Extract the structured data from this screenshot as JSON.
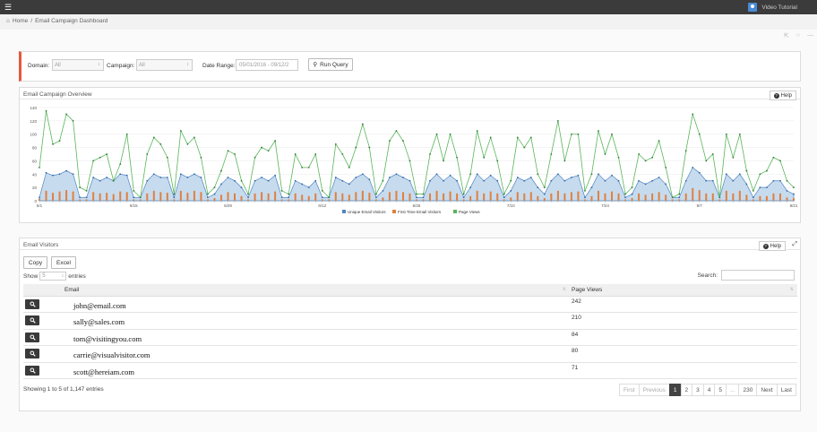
{
  "header": {
    "menu_icon": "hamburger-icon",
    "user_label": "Video Tutorial",
    "user_icon": "user-icon"
  },
  "breadcrumb": {
    "home": "Home",
    "separator": "/",
    "current": "Email Campaign Dashboard"
  },
  "filters": {
    "domain_label": "Domain:",
    "domain_value": "All",
    "campaign_label": "Campaign:",
    "campaign_value": "All",
    "date_label": "Date Range:",
    "date_value": "05/01/2016 - 09/12/2",
    "run_button": "Run Query"
  },
  "overview": {
    "title": "Email Campaign Overview",
    "help": "Help"
  },
  "chart_data": {
    "type": "line",
    "title": "",
    "ylim": [
      0,
      140
    ],
    "yticks": [
      0,
      20,
      40,
      60,
      80,
      100,
      120,
      140
    ],
    "x_tick_labels": [
      "5/1",
      "5/15",
      "5/29",
      "6/12",
      "6/26",
      "7/10",
      "7/24",
      "8/7",
      "8/21",
      "9/4"
    ],
    "legend": [
      "Unique Email Visitors",
      "First Time Email Visitors",
      "Page Views"
    ],
    "legend_position": "bottom",
    "colors": {
      "unique": "#4f86c0",
      "first": "#e0803e",
      "pageviews": "#59b55a"
    },
    "series": [
      {
        "name": "Page Views",
        "kind": "line",
        "values": [
          50,
          135,
          85,
          90,
          130,
          120,
          20,
          15,
          60,
          65,
          70,
          30,
          55,
          100,
          15,
          5,
          70,
          95,
          85,
          65,
          10,
          105,
          85,
          95,
          65,
          10,
          20,
          45,
          75,
          70,
          30,
          10,
          65,
          80,
          75,
          90,
          15,
          10,
          70,
          50,
          50,
          70,
          15,
          5,
          85,
          70,
          50,
          80,
          115,
          80,
          10,
          30,
          90,
          105,
          90,
          60,
          10,
          10,
          70,
          100,
          60,
          100,
          65,
          10,
          40,
          105,
          65,
          95,
          60,
          10,
          30,
          95,
          80,
          95,
          40,
          20,
          70,
          120,
          60,
          100,
          100,
          15,
          40,
          105,
          70,
          100,
          65,
          10,
          20,
          70,
          60,
          65,
          90,
          50,
          5,
          10,
          75,
          130,
          100,
          60,
          70,
          5,
          100,
          65,
          100,
          45,
          15,
          40,
          45,
          65,
          60,
          30,
          20
        ]
      },
      {
        "name": "Unique Email Visitors",
        "kind": "area",
        "values": [
          5,
          42,
          38,
          40,
          45,
          40,
          5,
          5,
          35,
          30,
          35,
          30,
          40,
          38,
          5,
          5,
          30,
          40,
          35,
          35,
          5,
          40,
          35,
          40,
          35,
          5,
          10,
          25,
          35,
          30,
          20,
          5,
          30,
          35,
          30,
          38,
          5,
          5,
          30,
          25,
          20,
          30,
          5,
          5,
          35,
          30,
          25,
          35,
          40,
          32,
          5,
          15,
          35,
          40,
          35,
          30,
          5,
          5,
          30,
          40,
          30,
          38,
          30,
          5,
          20,
          40,
          30,
          38,
          30,
          5,
          15,
          35,
          30,
          35,
          20,
          10,
          30,
          40,
          30,
          35,
          38,
          5,
          20,
          40,
          30,
          38,
          30,
          5,
          10,
          30,
          25,
          30,
          35,
          25,
          5,
          5,
          30,
          50,
          42,
          30,
          30,
          5,
          40,
          30,
          40,
          25,
          5,
          20,
          20,
          30,
          30,
          15,
          10
        ]
      },
      {
        "name": "First Time Email Visitors",
        "kind": "bar",
        "values": [
          3,
          15,
          12,
          14,
          16,
          14,
          2,
          2,
          13,
          11,
          12,
          10,
          14,
          13,
          2,
          2,
          11,
          15,
          13,
          12,
          2,
          15,
          12,
          15,
          13,
          2,
          4,
          9,
          13,
          11,
          7,
          2,
          11,
          13,
          11,
          14,
          2,
          2,
          11,
          9,
          7,
          11,
          2,
          2,
          13,
          11,
          9,
          13,
          15,
          12,
          2,
          5,
          13,
          15,
          13,
          11,
          2,
          2,
          11,
          15,
          11,
          14,
          11,
          2,
          7,
          15,
          11,
          14,
          11,
          2,
          5,
          13,
          11,
          13,
          7,
          4,
          11,
          15,
          11,
          13,
          14,
          2,
          7,
          15,
          11,
          14,
          11,
          2,
          4,
          11,
          9,
          11,
          13,
          9,
          2,
          2,
          11,
          19,
          16,
          11,
          11,
          2,
          15,
          11,
          15,
          9,
          2,
          7,
          7,
          11,
          11,
          5,
          4
        ]
      }
    ]
  },
  "visitors": {
    "title": "Email Visitors",
    "help": "Help",
    "copy_button": "Copy",
    "excel_button": "Excel",
    "show_label": "Show",
    "show_value": "5",
    "entries_label": "entries",
    "search_label": "Search:",
    "columns": [
      "Email",
      "Page Views"
    ],
    "rows": [
      {
        "email": "john@email.com",
        "views": "242"
      },
      {
        "email": "sally@sales.com",
        "views": "210"
      },
      {
        "email": "tom@visitingyou.com",
        "views": "84"
      },
      {
        "email": "carrie@visualvisitor.com",
        "views": "80"
      },
      {
        "email": "scott@hereiam.com",
        "views": "71"
      }
    ],
    "info": "Showing 1 to 5 of 1,147 entries",
    "pagination": [
      "First",
      "Previous",
      "1",
      "2",
      "3",
      "4",
      "5",
      "...",
      "230",
      "Next",
      "Last"
    ],
    "active_page": "1"
  }
}
